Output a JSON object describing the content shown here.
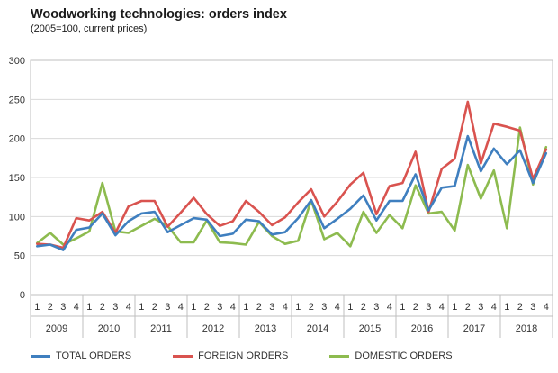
{
  "chart_data": {
    "type": "line",
    "title": "Woodworking technologies: orders index",
    "subtitle": "(2005=100, current prices)",
    "xlabel": "",
    "ylabel": "",
    "ylim": [
      0,
      300
    ],
    "yticks": [
      0,
      50,
      100,
      150,
      200,
      250,
      300
    ],
    "grid": true,
    "legend": "bottom",
    "quarters": [
      "1",
      "2",
      "3",
      "4",
      "1",
      "2",
      "3",
      "4",
      "1",
      "2",
      "3",
      "4",
      "1",
      "2",
      "3",
      "4",
      "1",
      "2",
      "3",
      "4",
      "1",
      "2",
      "3",
      "4",
      "1",
      "2",
      "3",
      "4",
      "1",
      "2",
      "3",
      "4",
      "1",
      "2",
      "3",
      "4",
      "1",
      "2",
      "3",
      "4"
    ],
    "years": [
      "2009",
      "2010",
      "2011",
      "2012",
      "2013",
      "2014",
      "2015",
      "2016",
      "2017",
      "2018"
    ],
    "series": [
      {
        "name": "TOTAL ORDERS",
        "color": "#3f7fbf",
        "values": [
          62,
          64,
          57,
          83,
          86,
          104,
          76,
          94,
          104,
          106,
          80,
          89,
          98,
          96,
          75,
          78,
          96,
          94,
          77,
          80,
          98,
          121,
          85,
          97,
          110,
          127,
          95,
          120,
          120,
          154,
          108,
          137,
          139,
          203,
          158,
          187,
          167,
          185,
          143,
          181
        ]
      },
      {
        "name": "FOREIGN ORDERS",
        "color": "#d9534f",
        "values": [
          65,
          64,
          60,
          98,
          95,
          106,
          79,
          113,
          120,
          120,
          87,
          105,
          124,
          103,
          88,
          94,
          120,
          106,
          89,
          99,
          118,
          135,
          100,
          119,
          141,
          156,
          103,
          139,
          143,
          183,
          106,
          161,
          174,
          247,
          168,
          219,
          215,
          210,
          148,
          186
        ]
      },
      {
        "name": "DOMESTIC ORDERS",
        "color": "#8dbb4f",
        "values": [
          66,
          79,
          64,
          72,
          81,
          143,
          81,
          79,
          88,
          97,
          88,
          67,
          67,
          95,
          67,
          66,
          64,
          93,
          75,
          65,
          69,
          121,
          71,
          79,
          62,
          106,
          79,
          102,
          85,
          140,
          104,
          106,
          82,
          166,
          123,
          159,
          85,
          214,
          141,
          189
        ]
      }
    ]
  }
}
